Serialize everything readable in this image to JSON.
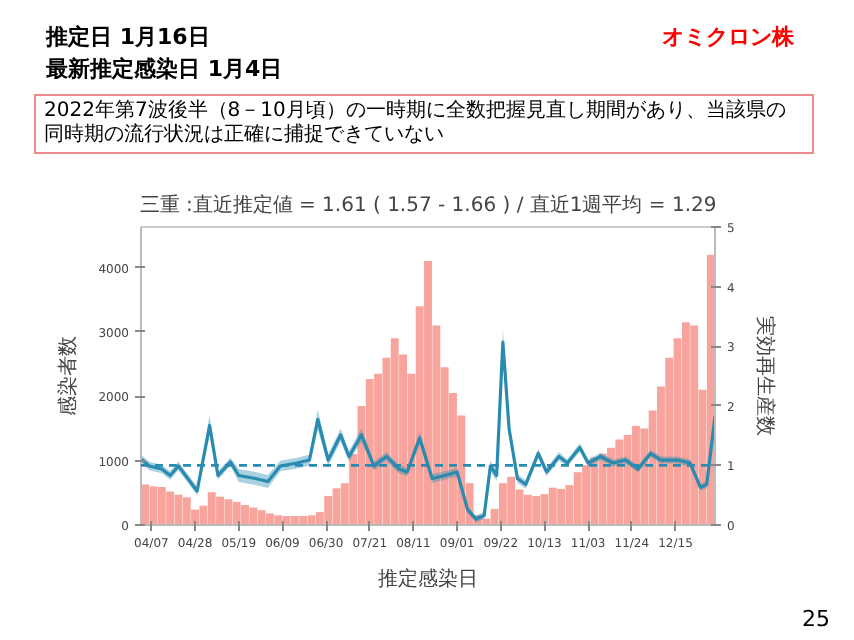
{
  "chart_data": {
    "type": "bar",
    "title": "三重 :直近推定値 = 1.61 ( 1.57 - 1.66 ) / 直近1週平均 = 1.29",
    "xlabel": "推定感染日",
    "ylabel": "感染者数",
    "y2label": "実効再生産数",
    "annotations": [
      "推定日  1月16日",
      "最新推定感染日  1月4日",
      "オミクロン株",
      "2022年第7波後半（8－10月頃）の一時期に全数把握見直し期間があり、当該県の同時期の流行状況は正確に捕捉できていない",
      "25"
    ],
    "x": [
      "2022-04-04",
      "2022-04-08",
      "2022-04-12",
      "2022-04-16",
      "2022-04-20",
      "2022-04-24",
      "2022-04-28",
      "2022-05-02",
      "2022-05-06",
      "2022-05-10",
      "2022-05-14",
      "2022-05-18",
      "2022-05-22",
      "2022-05-26",
      "2022-05-30",
      "2022-06-03",
      "2022-06-07",
      "2022-06-11",
      "2022-06-15",
      "2022-06-19",
      "2022-06-23",
      "2022-06-27",
      "2022-07-01",
      "2022-07-05",
      "2022-07-09",
      "2022-07-13",
      "2022-07-17",
      "2022-07-21",
      "2022-07-25",
      "2022-07-29",
      "2022-08-02",
      "2022-08-06",
      "2022-08-10",
      "2022-08-14",
      "2022-08-18",
      "2022-08-22",
      "2022-08-26",
      "2022-08-30",
      "2022-09-03",
      "2022-09-07",
      "2022-09-11",
      "2022-09-15",
      "2022-09-19",
      "2022-09-23",
      "2022-09-27",
      "2022-10-01",
      "2022-10-05",
      "2022-10-09",
      "2022-10-13",
      "2022-10-17",
      "2022-10-21",
      "2022-10-25",
      "2022-10-29",
      "2022-11-02",
      "2022-11-06",
      "2022-11-10",
      "2022-11-14",
      "2022-11-18",
      "2022-11-22",
      "2022-11-26",
      "2022-11-30",
      "2022-12-04",
      "2022-12-08",
      "2022-12-12",
      "2022-12-16",
      "2022-12-20",
      "2022-12-24",
      "2022-12-28",
      "2023-01-01"
    ],
    "series": [
      {
        "color": "#f8a39c",
        "values": [
          630,
          600,
          590,
          520,
          470,
          430,
          240,
          300,
          510,
          440,
          400,
          360,
          310,
          270,
          230,
          180,
          150,
          140,
          140,
          140,
          150,
          200,
          450,
          570,
          650,
          1100,
          1850,
          2270,
          2350,
          2600,
          2900,
          2650,
          2350,
          3400,
          4100,
          3100,
          2450,
          2050,
          1700,
          650,
          150,
          100,
          250,
          650,
          750,
          550,
          470,
          450,
          480,
          580,
          560,
          620,
          820,
          930,
          1050,
          1110,
          1200,
          1330,
          1400,
          1540,
          1500,
          1780,
          2150,
          2600,
          2900,
          3150,
          3100,
          2100,
          4200
        ]
      },
      {
        "type": "line",
        "axis": "y2",
        "color": "#2a8bb0",
        "x": [
          "2022-04-02",
          "2022-04-06",
          "2022-04-12",
          "2022-04-16",
          "2022-04-20",
          "2022-04-29",
          "2022-05-05",
          "2022-05-09",
          "2022-05-15",
          "2022-05-19",
          "2022-05-27",
          "2022-06-02",
          "2022-06-08",
          "2022-06-16",
          "2022-06-22",
          "2022-06-26",
          "2022-07-01",
          "2022-07-07",
          "2022-07-11",
          "2022-07-17",
          "2022-07-23",
          "2022-07-29",
          "2022-08-04",
          "2022-08-08",
          "2022-08-14",
          "2022-08-20",
          "2022-08-26",
          "2022-09-01",
          "2022-09-06",
          "2022-09-10",
          "2022-09-14",
          "2022-09-17",
          "2022-09-20",
          "2022-09-23",
          "2022-09-26",
          "2022-09-30",
          "2022-10-04",
          "2022-10-10",
          "2022-10-14",
          "2022-10-20",
          "2022-10-24",
          "2022-10-30",
          "2022-11-03",
          "2022-11-09",
          "2022-11-15",
          "2022-11-21",
          "2022-11-27",
          "2022-12-03",
          "2022-12-08",
          "2022-12-16",
          "2022-12-22",
          "2022-12-27",
          "2022-12-30",
          "2023-01-03"
        ],
        "values": [
          1.11,
          0.99,
          0.94,
          0.83,
          0.99,
          0.57,
          1.67,
          0.83,
          1.06,
          0.83,
          0.78,
          0.73,
          0.99,
          1.04,
          1.09,
          1.77,
          1.09,
          1.51,
          1.15,
          1.51,
          0.99,
          1.15,
          0.94,
          0.89,
          1.46,
          0.78,
          0.83,
          0.89,
          0.26,
          0.1,
          0.16,
          0.99,
          0.83,
          3.07,
          1.61,
          0.78,
          0.68,
          1.2,
          0.89,
          1.15,
          1.04,
          1.3,
          1.04,
          1.15,
          1.04,
          1.09,
          0.94,
          1.2,
          1.09,
          1.09,
          1.04,
          0.63,
          0.68,
          1.82
        ],
        "lower": [
          1.04,
          0.92,
          0.87,
          0.76,
          0.92,
          0.5,
          1.5,
          0.76,
          0.99,
          0.72,
          0.67,
          0.62,
          0.9,
          0.95,
          1.0,
          1.6,
          1.0,
          1.4,
          1.06,
          1.4,
          0.92,
          1.08,
          0.87,
          0.82,
          1.36,
          0.71,
          0.76,
          0.82,
          0.2,
          0.04,
          0.1,
          0.9,
          0.74,
          2.85,
          1.5,
          0.71,
          0.61,
          1.12,
          0.82,
          1.08,
          0.98,
          1.23,
          0.98,
          1.09,
          0.98,
          1.03,
          0.88,
          1.14,
          1.03,
          1.03,
          0.98,
          0.57,
          0.62,
          1.74
        ],
        "upper": [
          1.18,
          1.06,
          1.01,
          0.9,
          1.06,
          0.64,
          1.84,
          0.9,
          1.13,
          0.94,
          0.89,
          0.84,
          1.08,
          1.13,
          1.18,
          1.94,
          1.18,
          1.62,
          1.24,
          1.62,
          1.06,
          1.22,
          1.01,
          0.96,
          1.56,
          0.85,
          0.9,
          0.96,
          0.32,
          0.16,
          0.22,
          1.08,
          0.92,
          3.29,
          1.72,
          0.85,
          0.75,
          1.28,
          0.96,
          1.22,
          1.1,
          1.37,
          1.1,
          1.21,
          1.1,
          1.15,
          1.0,
          1.26,
          1.15,
          1.15,
          1.1,
          0.69,
          0.74,
          1.9
        ]
      }
    ],
    "xlim": [
      "2022-04-02",
      "2023-01-03"
    ],
    "xticks": [
      {
        "value": "2022-04-07",
        "label": "04/07"
      },
      {
        "value": "2022-04-28",
        "label": "04/28"
      },
      {
        "value": "2022-05-19",
        "label": "05/19"
      },
      {
        "value": "2022-06-09",
        "label": "06/09"
      },
      {
        "value": "2022-06-30",
        "label": "06/30"
      },
      {
        "value": "2022-07-21",
        "label": "07/21"
      },
      {
        "value": "2022-08-11",
        "label": "08/11"
      },
      {
        "value": "2022-09-01",
        "label": "09/01"
      },
      {
        "value": "2022-09-22",
        "label": "09/22"
      },
      {
        "value": "2022-10-13",
        "label": "10/13"
      },
      {
        "value": "2022-11-03",
        "label": "11/03"
      },
      {
        "value": "2022-11-24",
        "label": "11/24"
      },
      {
        "value": "2022-12-15",
        "label": "12/15"
      }
    ],
    "ylim": [
      0,
      4630
    ],
    "yticks": [
      0,
      1000,
      2000,
      3000,
      4000
    ],
    "y2lim": [
      0,
      5
    ],
    "y2ticks": [
      0,
      1,
      2,
      3,
      4,
      5
    ],
    "ref_lines": [
      {
        "axis": "y2",
        "value": 1,
        "color": "#2a8bb0",
        "line_style": "dashed"
      }
    ]
  }
}
